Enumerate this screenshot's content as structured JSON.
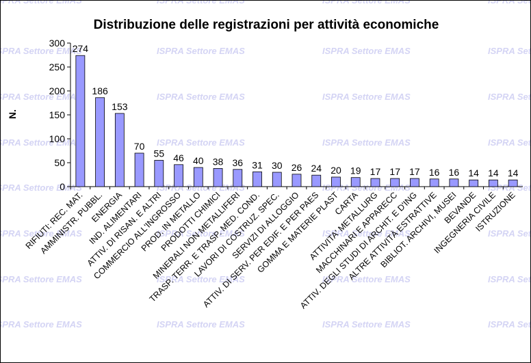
{
  "watermark": "ISPRA Settore EMAS",
  "colors": {
    "bar": "#9999ff",
    "bar_edge": "#000000",
    "axis": "#000000",
    "background": "#ffffff"
  },
  "chart_data": {
    "type": "bar",
    "title": "Distribuzione delle registrazioni per attività economiche",
    "xlabel": "",
    "ylabel": "N.",
    "ylim": [
      0,
      300
    ],
    "yticks": [
      0,
      50,
      100,
      150,
      200,
      250,
      300
    ],
    "grid": false,
    "legend": "none",
    "categories": [
      "RIFIUTI: REC. MAT.",
      "AMMINISTR. PUBBL.",
      "ENERGIA",
      "IND. ALIMENTARI",
      "ATTIV. DI RISAN. E ALTRI",
      "COMMERCIO ALL'INGROSSO",
      "PROD. IN METALLO",
      "PRODOTTI CHIMICI",
      "MINERALI NON METALLIFERI",
      "TRASP. TERR. E TRASP. MED. COND.",
      "LAVORI DI COSTRUZ. SPEC.",
      "SERVIZI DI ALLOGGIO",
      "ATTIV. DI SERV. PER EDIF. E PER PAES",
      "GOMMA E MATERIE PLAST",
      "CARTA",
      "ATTIVITA' METALLURG",
      "MACCHINARI E APPARECC",
      "ATTIV. DEGLI STUDI DI ARCHIT. E D'ING",
      "ALTRE ATTIVITÀ ESTRATTIVE",
      "BIBLIOT. ARCHIVI, MUSEI",
      "BEVANDE",
      "INGEGNERIA CIVILE",
      "ISTRUZIONE"
    ],
    "values": [
      274,
      186,
      153,
      70,
      55,
      46,
      40,
      38,
      36,
      31,
      30,
      26,
      24,
      20,
      19,
      17,
      17,
      17,
      16,
      16,
      14,
      14,
      14
    ]
  }
}
